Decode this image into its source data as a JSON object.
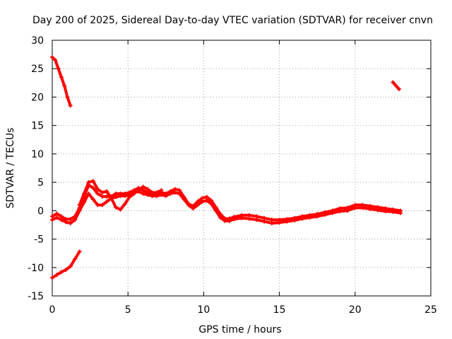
{
  "chart_data": {
    "type": "scatter",
    "title": "Day 200 of 2025, Sidereal Day-to-day VTEC variation (SDTVAR) for receiver cnvn",
    "xlabel": "GPS time / hours",
    "ylabel": "SDTVAR / TECUs",
    "xlim": [
      0,
      25
    ],
    "ylim": [
      -15,
      30
    ],
    "xticks": [
      0,
      5,
      10,
      15,
      20,
      25
    ],
    "yticks": [
      -15,
      -10,
      -5,
      0,
      5,
      10,
      15,
      20,
      25,
      30
    ],
    "grid": true,
    "marker_color": "#ff0000",
    "series": [
      {
        "name": "main-trace-a",
        "x": [
          0,
          0.3,
          0.6,
          0.9,
          1.2,
          1.5,
          1.8,
          2.1,
          2.4,
          2.7,
          3.0,
          3.3,
          3.6,
          3.9,
          4.2,
          4.5,
          4.8,
          5.1,
          5.4,
          5.7,
          6.0,
          6.3,
          6.6,
          6.9,
          7.2,
          7.5,
          7.8,
          8.1,
          8.4,
          8.7,
          9.0,
          9.3,
          9.6,
          9.9,
          10.2,
          10.5,
          10.8,
          11.1,
          11.4,
          11.7,
          12.0,
          12.5,
          13.0,
          13.5,
          14.0,
          14.5,
          15.0,
          15.5,
          16.0,
          16.5,
          17.0,
          17.5,
          18.0,
          18.5,
          19.0,
          19.5,
          20.0,
          20.5,
          21.0,
          21.5,
          22.0,
          22.5,
          23.0
        ],
        "y": [
          -1,
          -0.5,
          -1,
          -1.5,
          -1.5,
          -1,
          0.5,
          2.5,
          4.5,
          4,
          3,
          2.5,
          2.5,
          2.5,
          3,
          3,
          3,
          3.2,
          3.6,
          4,
          3.6,
          3.2,
          3,
          3,
          3.2,
          3,
          3.4,
          3.8,
          3.6,
          2.4,
          1.2,
          0.8,
          1.6,
          2.2,
          2.4,
          1.8,
          0.6,
          -0.6,
          -1.4,
          -1.4,
          -1.1,
          -0.8,
          -0.8,
          -1,
          -1.3,
          -1.6,
          -1.6,
          -1.5,
          -1.3,
          -1,
          -0.8,
          -0.6,
          -0.3,
          0,
          0.4,
          0.5,
          1,
          1,
          0.8,
          0.6,
          0.4,
          0.2,
          0
        ]
      },
      {
        "name": "main-trace-b",
        "x": [
          0,
          0.3,
          0.6,
          0.9,
          1.2,
          1.5,
          1.8,
          2.1,
          2.4,
          2.7,
          3.0,
          3.3,
          3.6,
          3.9,
          4.2,
          4.5,
          4.8,
          5.1,
          5.4,
          5.7,
          6.0,
          6.3,
          6.6,
          6.9,
          7.2,
          7.5,
          7.8,
          8.1,
          8.4,
          8.7,
          9.0,
          9.3,
          9.6,
          9.9,
          10.2,
          10.5,
          10.8,
          11.1,
          11.4,
          11.7,
          12.0,
          12.5,
          13.0,
          13.5,
          14.0,
          14.5,
          15.0,
          15.5,
          16.0,
          16.5,
          17.0,
          17.5,
          18.0,
          18.5,
          19.0,
          19.5,
          20.0,
          20.5,
          21.0,
          21.5,
          22.0,
          22.5,
          23.0
        ],
        "y": [
          -1.6,
          -1.2,
          -1.6,
          -2,
          -2.2,
          -1.6,
          0,
          1.5,
          3,
          2,
          1,
          1,
          1.6,
          2.2,
          2.4,
          2.6,
          2.6,
          2.8,
          3.2,
          3.4,
          3,
          2.8,
          2.6,
          2.6,
          2.8,
          2.6,
          3,
          3.2,
          3,
          2,
          1,
          0.4,
          1,
          1.6,
          1.8,
          1.2,
          0,
          -1.2,
          -1.8,
          -1.8,
          -1.5,
          -1.3,
          -1.4,
          -1.6,
          -1.9,
          -2.2,
          -2.1,
          -1.9,
          -1.7,
          -1.4,
          -1.2,
          -1,
          -0.7,
          -0.4,
          -0.1,
          0,
          0.5,
          0.5,
          0.3,
          0.1,
          -0.1,
          -0.2,
          -0.4
        ]
      },
      {
        "name": "main-trace-c",
        "x": [
          1.8,
          2.1,
          2.4,
          2.7,
          3.0,
          3.3,
          3.6,
          3.9,
          4.2,
          4.5,
          4.8,
          5.1,
          5.4,
          5.7,
          6.0,
          6.3,
          6.6,
          6.9,
          7.2
        ],
        "y": [
          1,
          3,
          5,
          5.2,
          3.8,
          3.2,
          3.4,
          2.2,
          0.6,
          0.2,
          1.2,
          2.4,
          3,
          3.6,
          4.2,
          3.8,
          3.2,
          3.2,
          3.6
        ]
      },
      {
        "name": "segment-upper-left",
        "x": [
          0,
          0.2,
          0.4,
          0.6,
          0.8,
          1.0,
          1.2
        ],
        "y": [
          27,
          26.5,
          25,
          23.5,
          22,
          20,
          18.5
        ]
      },
      {
        "name": "segment-lower-left",
        "x": [
          0,
          0.3,
          0.6,
          0.9,
          1.2,
          1.5,
          1.8
        ],
        "y": [
          -11.8,
          -11.3,
          -10.8,
          -10.4,
          -9.8,
          -8.5,
          -7.2
        ]
      },
      {
        "name": "segment-upper-right",
        "x": [
          22.5,
          22.7,
          22.9
        ],
        "y": [
          22.6,
          22,
          21.4
        ]
      }
    ]
  }
}
